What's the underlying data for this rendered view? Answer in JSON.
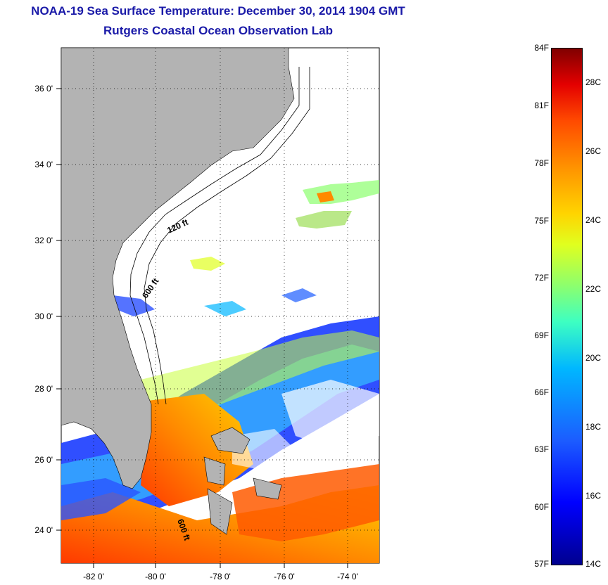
{
  "title": {
    "line1": "NOAA-19 Sea Surface Temperature:  December 30, 2014 1904 GMT",
    "line2": "Rutgers Coastal Ocean Observation Lab"
  },
  "map": {
    "lat_ticks": [
      "36 0'",
      "34 0'",
      "32 0'",
      "30 0'",
      "28 0'",
      "26 0'",
      "24 0'"
    ],
    "lon_ticks": [
      "-82 0'",
      "-80 0'",
      "-78 0'",
      "-76 0'",
      "-74 0'"
    ],
    "contour_labels": [
      "120 ft",
      "600 ft",
      "600 ft"
    ],
    "colors": {
      "land": "#b3b3b3",
      "no_data": "#ffffff"
    }
  },
  "colorbar": {
    "fahrenheit": [
      "84F",
      "81F",
      "78F",
      "75F",
      "72F",
      "69F",
      "66F",
      "63F",
      "60F",
      "57F"
    ],
    "celsius": [
      "28C",
      "26C",
      "24C",
      "22C",
      "20C",
      "18C",
      "16C",
      "14C"
    ]
  }
}
